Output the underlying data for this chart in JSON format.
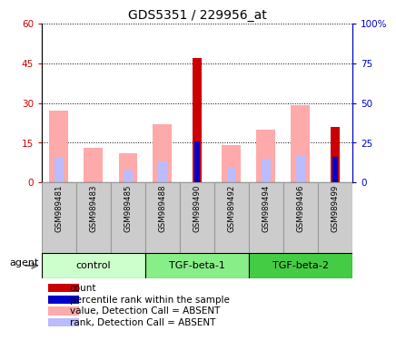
{
  "title": "GDS5351 / 229956_at",
  "samples": [
    "GSM989481",
    "GSM989483",
    "GSM989485",
    "GSM989488",
    "GSM989490",
    "GSM989492",
    "GSM989494",
    "GSM989496",
    "GSM989499"
  ],
  "groups": [
    {
      "name": "control",
      "indices": [
        0,
        1,
        2
      ],
      "color_light": "#ccffcc",
      "color_dark": "#ccffcc"
    },
    {
      "name": "TGF-beta-1",
      "indices": [
        3,
        4,
        5
      ],
      "color_light": "#55ee55",
      "color_dark": "#55ee55"
    },
    {
      "name": "TGF-beta-2",
      "indices": [
        6,
        7,
        8
      ],
      "color_light": "#33dd33",
      "color_dark": "#33dd33"
    }
  ],
  "count_values": [
    0,
    0,
    0,
    0,
    47,
    0,
    0,
    0,
    21
  ],
  "percentile_values": [
    0,
    0,
    0,
    0,
    26,
    0,
    0,
    0,
    16
  ],
  "absent_value_values": [
    27,
    13,
    11,
    22,
    0,
    14,
    20,
    29,
    0
  ],
  "absent_rank_values": [
    16,
    0,
    8,
    13,
    0,
    9,
    15,
    17,
    0
  ],
  "ylim_left": [
    0,
    60
  ],
  "ylim_right": [
    0,
    100
  ],
  "yticks_left": [
    0,
    15,
    30,
    45,
    60
  ],
  "yticks_right": [
    0,
    25,
    50,
    75,
    100
  ],
  "ytick_labels_left": [
    "0",
    "15",
    "30",
    "45",
    "60"
  ],
  "ytick_labels_right": [
    "0",
    "25",
    "50",
    "75",
    "100%"
  ],
  "left_axis_color": "#cc0000",
  "right_axis_color": "#0000cc",
  "count_color": "#cc0000",
  "percentile_color": "#0000cc",
  "absent_value_color": "#ffaaaa",
  "absent_rank_color": "#bbbbff",
  "legend_items": [
    {
      "color": "#cc0000",
      "label": "count"
    },
    {
      "color": "#0000cc",
      "label": "percentile rank within the sample"
    },
    {
      "color": "#ffaaaa",
      "label": "value, Detection Call = ABSENT"
    },
    {
      "color": "#bbbbff",
      "label": "rank, Detection Call = ABSENT"
    }
  ],
  "agent_label": "agent",
  "sample_box_color": "#cccccc",
  "sample_box_edge": "#999999"
}
